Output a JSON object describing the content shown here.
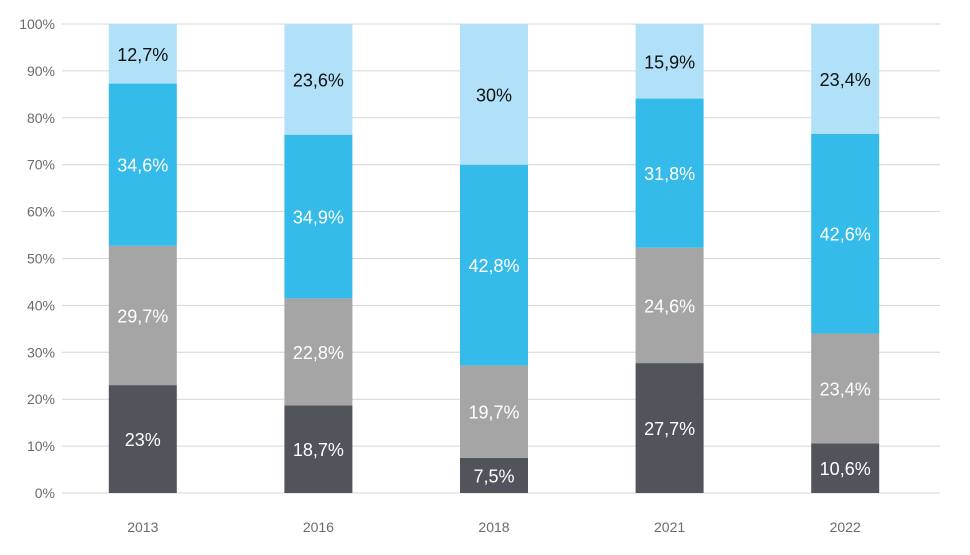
{
  "chart_data": {
    "type": "bar",
    "stacked": true,
    "categories": [
      "2013",
      "2016",
      "2018",
      "2021",
      "2022"
    ],
    "series": [
      {
        "values": [
          23,
          18.7,
          7.5,
          27.7,
          10.6
        ],
        "labels": [
          "23%",
          "18,7%",
          "7,5%",
          "27,7%",
          "10,6%"
        ],
        "color": "#52545c",
        "label_color": "#ffffff"
      },
      {
        "values": [
          29.7,
          22.8,
          19.7,
          24.6,
          23.4
        ],
        "labels": [
          "29,7%",
          "22,8%",
          "19,7%",
          "24,6%",
          "23,4%"
        ],
        "color": "#a5a5a5",
        "label_color": "#ffffff"
      },
      {
        "values": [
          34.6,
          34.9,
          42.8,
          31.8,
          42.6
        ],
        "labels": [
          "34,6%",
          "34,9%",
          "42,8%",
          "31,8%",
          "42,6%"
        ],
        "color": "#35bbea",
        "label_color": "#ffffff"
      },
      {
        "values": [
          12.7,
          23.6,
          30,
          15.9,
          23.4
        ],
        "labels": [
          "12,7%",
          "23,6%",
          "30%",
          "15,9%",
          "23,4%"
        ],
        "color": "#b0e1f8",
        "label_color": "#111111"
      }
    ],
    "ylim": [
      0,
      100
    ],
    "yticks": [
      "0%",
      "10%",
      "20%",
      "30%",
      "40%",
      "50%",
      "60%",
      "70%",
      "80%",
      "90%",
      "100%"
    ],
    "grid": true,
    "legend": "none",
    "title": "",
    "xlabel": "",
    "ylabel": ""
  }
}
